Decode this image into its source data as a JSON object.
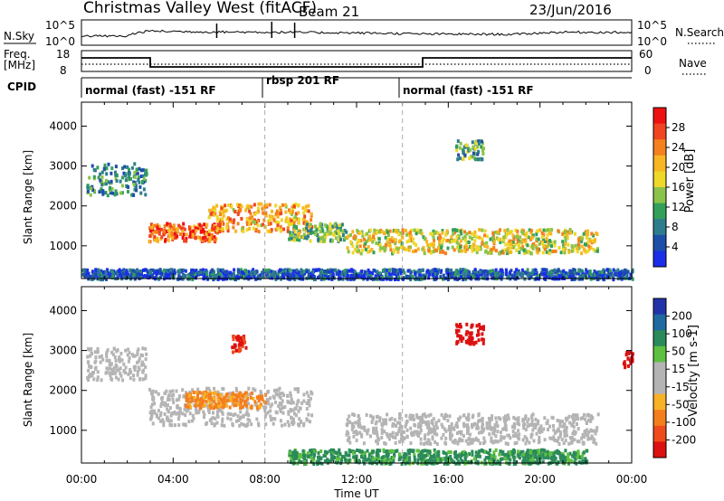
{
  "header": {
    "title": "Christmas Valley West (fitACF)",
    "beam": "Beam 21",
    "date": "23/Jun/2016"
  },
  "top_panels": {
    "nsky": {
      "label": "N.Sky",
      "right_label": "N.Search",
      "ticks_left": [
        "10^5",
        "10^0"
      ],
      "ticks_right": [
        "10^5",
        "10^0"
      ]
    },
    "freq": {
      "label_line1": "Freq.",
      "label_line2": "[MHz]",
      "ticks_left": [
        "18",
        "8"
      ],
      "ticks_right": [
        "60",
        "0"
      ],
      "right_label": "Nave"
    },
    "cpid": {
      "label": "CPID",
      "segments": [
        {
          "label": "normal (fast) -151 RF",
          "start_hour": 0,
          "end_hour": 8
        },
        {
          "label": "rbsp 201 RF",
          "start_hour": 8,
          "end_hour": 14
        },
        {
          "label": "normal (fast) -151 RF",
          "start_hour": 14,
          "end_hour": 24
        }
      ]
    }
  },
  "axes": {
    "time_ticks": [
      "00:00",
      "04:00",
      "08:00",
      "12:00",
      "16:00",
      "20:00",
      "00:00"
    ],
    "xlabel": "Time UT",
    "range_ticks": [
      "1000",
      "2000",
      "3000",
      "4000"
    ],
    "ylabel": "Slant Range [km]"
  },
  "power_colorbar": {
    "label": "Power [dB]",
    "ticks": [
      "28",
      "24",
      "20",
      "16",
      "12",
      "8",
      "4"
    ],
    "colors": [
      "#ee1111",
      "#f04422",
      "#f5801e",
      "#f8b622",
      "#eed82a",
      "#8bc34a",
      "#33a05a",
      "#2e7d8c",
      "#1e4fa8",
      "#1a2ee8"
    ]
  },
  "velocity_colorbar": {
    "label": "Velocity [m s-1]",
    "ticks": [
      "200",
      "100",
      "50",
      "15",
      "-15",
      "-50",
      "-100",
      "-200"
    ],
    "colors": [
      "#2233aa",
      "#1f6aa0",
      "#2a8a5a",
      "#5dc040",
      "#b4b4b4",
      "#b4b4b4",
      "#f8b226",
      "#f57e1c",
      "#ef4a1c",
      "#dd1111"
    ]
  },
  "chart_data": [
    {
      "type": "line",
      "title": "N.Sky / N.Search",
      "x": [
        0,
        2,
        3,
        5,
        8,
        12,
        15,
        19,
        21,
        24
      ],
      "series": [
        {
          "name": "N.Sky",
          "values": [
            10,
            9,
            60,
            45,
            40,
            30,
            20,
            18,
            40,
            35
          ]
        }
      ],
      "xlim": [
        0,
        24
      ]
    },
    {
      "type": "line",
      "title": "Freq / Nave",
      "x": [
        0,
        3,
        3,
        15,
        15,
        24
      ],
      "series": [
        {
          "name": "Freq",
          "values": [
            16,
            16,
            10,
            10,
            16,
            16
          ]
        }
      ],
      "xlim": [
        0,
        24
      ],
      "ylim": [
        8,
        18
      ]
    },
    {
      "type": "heatmap",
      "title": "Power [dB]",
      "xlabel": "Time UT",
      "ylabel": "Slant Range [km]",
      "xlim": [
        0,
        24
      ],
      "ylim": [
        180,
        4600
      ],
      "regions": [
        {
          "t0": 0.2,
          "t1": 2.8,
          "r0": 2300,
          "r1": 3100,
          "power": 10
        },
        {
          "t0": 2.9,
          "t1": 6.0,
          "r0": 1150,
          "r1": 1600,
          "power": 26
        },
        {
          "t0": 5.5,
          "t1": 10.0,
          "r0": 1400,
          "r1": 2100,
          "power": 22
        },
        {
          "t0": 9.0,
          "t1": 11.5,
          "r0": 1150,
          "r1": 1600,
          "power": 14
        },
        {
          "t0": 11.5,
          "t1": 22.5,
          "r0": 850,
          "r1": 1450,
          "power": 18
        },
        {
          "t0": 16.3,
          "t1": 17.5,
          "r0": 3200,
          "r1": 3700,
          "power": 12
        },
        {
          "t0": 0.0,
          "t1": 24.0,
          "r0": 200,
          "r1": 450,
          "power": 6
        }
      ]
    },
    {
      "type": "heatmap",
      "title": "Velocity [m s-1]",
      "xlabel": "Time UT",
      "ylabel": "Slant Range [km]",
      "xlim": [
        0,
        24
      ],
      "ylim": [
        180,
        4600
      ],
      "regions": [
        {
          "t0": 0.2,
          "t1": 2.8,
          "r0": 2300,
          "r1": 3100,
          "vel": 0
        },
        {
          "t0": 2.9,
          "t1": 10.0,
          "r0": 1150,
          "r1": 2100,
          "vel": 0
        },
        {
          "t0": 4.5,
          "t1": 8.0,
          "r0": 1600,
          "r1": 2000,
          "vel": -40
        },
        {
          "t0": 11.5,
          "t1": 22.5,
          "r0": 700,
          "r1": 1450,
          "vel": 0
        },
        {
          "t0": 16.3,
          "t1": 17.5,
          "r0": 3200,
          "r1": 3700,
          "vel": -200
        },
        {
          "t0": 23.6,
          "t1": 24.0,
          "r0": 2600,
          "r1": 3000,
          "vel": -200
        },
        {
          "t0": 6.5,
          "t1": 7.2,
          "r0": 3000,
          "r1": 3400,
          "vel": -150
        },
        {
          "t0": 9.0,
          "t1": 22.0,
          "r0": 200,
          "r1": 550,
          "vel": 40
        }
      ]
    }
  ]
}
